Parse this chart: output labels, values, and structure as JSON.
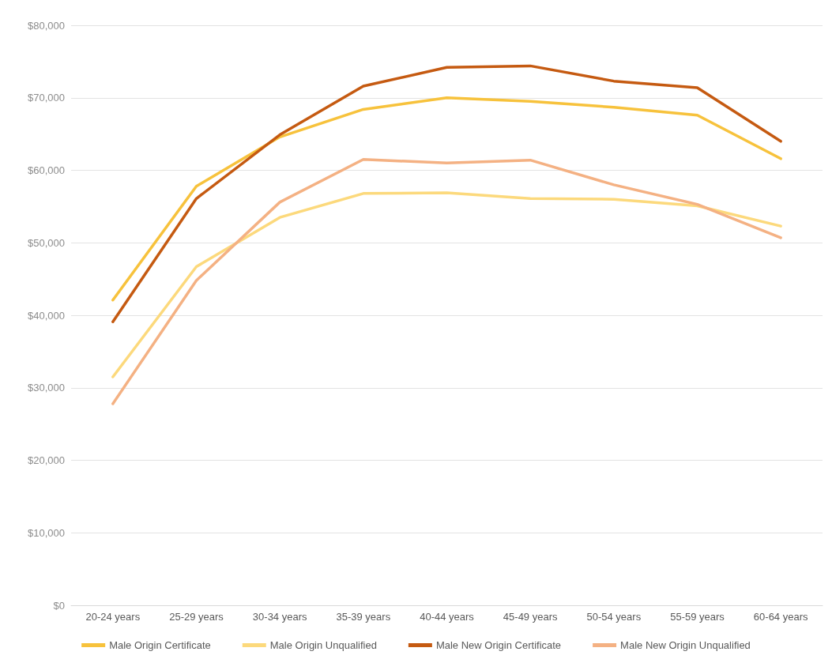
{
  "chart_data": {
    "type": "line",
    "categories": [
      "20-24 years",
      "25-29 years",
      "30-34 years",
      "35-39 years",
      "40-44 years",
      "45-49 years",
      "50-54 years",
      "55-59 years",
      "60-64 years"
    ],
    "series": [
      {
        "name": "Male Origin Certificate",
        "color": "#f7c23c",
        "values": [
          42100,
          57800,
          64600,
          68400,
          70000,
          69500,
          68700,
          67600,
          61600
        ]
      },
      {
        "name": "Male Origin Unqualified",
        "color": "#fcd97c",
        "values": [
          31500,
          46700,
          53500,
          56800,
          56900,
          56100,
          56000,
          55100,
          52300
        ]
      },
      {
        "name": "Male New Origin Certificate",
        "color": "#c55a11",
        "values": [
          39100,
          56100,
          64900,
          71600,
          74200,
          74400,
          72300,
          71400,
          64000
        ]
      },
      {
        "name": "Male New Origin Unqualified",
        "color": "#f4b183",
        "values": [
          27800,
          44800,
          55600,
          61500,
          61000,
          61400,
          58000,
          55300,
          50700
        ]
      }
    ],
    "ylim": [
      0,
      80000
    ],
    "yticks": [
      {
        "value": 0,
        "label": "$0"
      },
      {
        "value": 10000,
        "label": "$10,000"
      },
      {
        "value": 20000,
        "label": "$20,000"
      },
      {
        "value": 30000,
        "label": "$30,000"
      },
      {
        "value": 40000,
        "label": "$40,000"
      },
      {
        "value": 50000,
        "label": "$50,000"
      },
      {
        "value": 60000,
        "label": "$60,000"
      },
      {
        "value": 70000,
        "label": "$70,000"
      },
      {
        "value": 80000,
        "label": "$80,000"
      }
    ],
    "grid": "y",
    "legend": "bottom",
    "marker": "none",
    "line_style": "solid"
  }
}
